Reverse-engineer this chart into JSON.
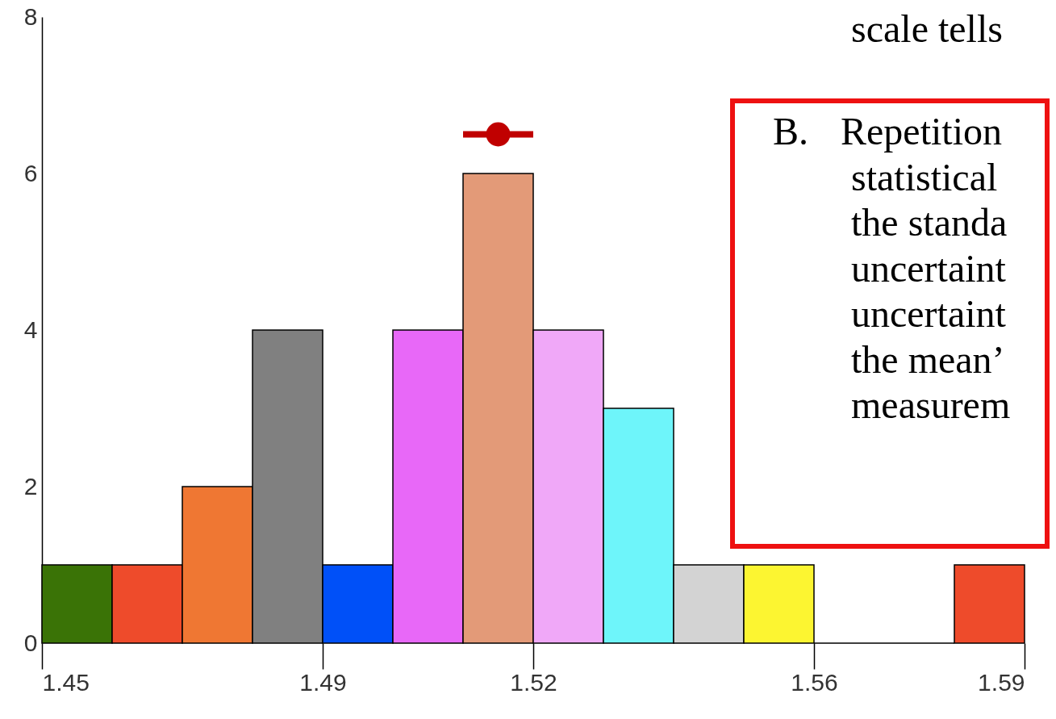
{
  "chart_data": {
    "type": "histogram",
    "bins": [
      1.45,
      1.46,
      1.47,
      1.48,
      1.49,
      1.5,
      1.51,
      1.52,
      1.53,
      1.54,
      1.55,
      1.56,
      1.57,
      1.58,
      1.59
    ],
    "values": [
      1,
      1,
      2,
      4,
      1,
      4,
      6,
      4,
      3,
      1,
      1,
      0,
      0,
      1
    ],
    "colors": [
      "#3a7306",
      "#ee4b2b",
      "#ef7733",
      "#808080",
      "#0050f8",
      "#e868f8",
      "#e39a78",
      "#f0a8f8",
      "#6ef5fa",
      "#d3d3d3",
      "#fcf531",
      "#000000",
      "#000000",
      "#ee4b2b"
    ],
    "series": [
      {
        "type": "scatter",
        "x": [
          1.515
        ],
        "values": [
          6.5
        ],
        "xerrors": [
          0.005
        ],
        "color": "#c00000"
      }
    ],
    "xlim": [
      1.45,
      1.59
    ],
    "xticks": [
      1.45,
      1.49,
      1.52,
      1.56,
      1.59
    ],
    "ylim": [
      0,
      8
    ],
    "yticks": [
      0,
      2,
      4,
      6,
      8
    ],
    "annotations": [
      "scale tells",
      "B. Repetition",
      "statistical",
      "the standa",
      "uncertaint",
      "uncertaint",
      "the mean’",
      "measurem"
    ]
  }
}
